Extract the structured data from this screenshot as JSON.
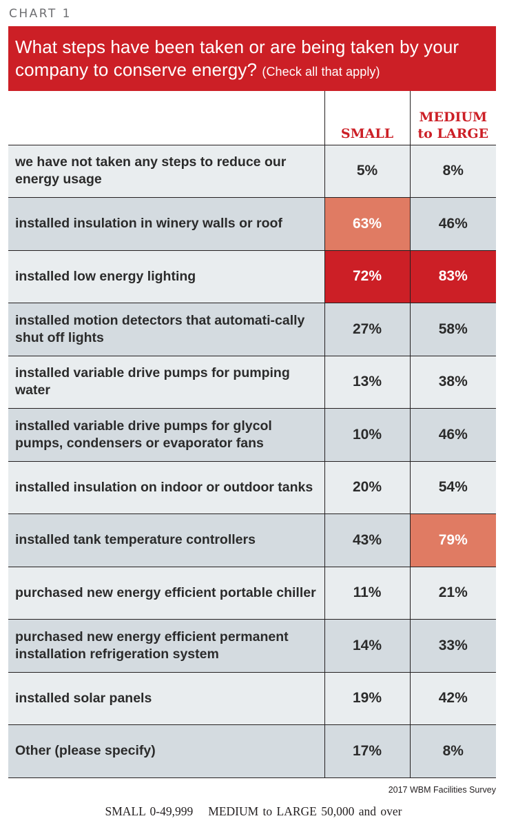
{
  "chart_label": "CHART 1",
  "title": "What steps have been taken or are being taken by your company to conserve energy?",
  "title_note": "(Check all that apply)",
  "columns": {
    "small": "SMALL",
    "medium_line1": "MEDIUM",
    "medium_line2": "to LARGE"
  },
  "chart_data": {
    "type": "table",
    "title": "What steps have been taken or are being taken by your company to conserve energy? (Check all that apply)",
    "columns": [
      "SMALL",
      "MEDIUM to LARGE"
    ],
    "rows": [
      {
        "label": "we have not taken any steps to reduce our energy usage",
        "small": "5%",
        "medium": "8%",
        "small_value": 5,
        "medium_value": 8
      },
      {
        "label": "installed insulation in winery walls or roof",
        "small": "63%",
        "medium": "46%",
        "small_value": 63,
        "medium_value": 46
      },
      {
        "label": "installed low energy lighting",
        "small": "72%",
        "medium": "83%",
        "small_value": 72,
        "medium_value": 83
      },
      {
        "label": "installed motion detectors that automati-cally shut off lights",
        "small": "27%",
        "medium": "58%",
        "small_value": 27,
        "medium_value": 58
      },
      {
        "label": "installed variable drive pumps for pumping water",
        "small": "13%",
        "medium": "38%",
        "small_value": 13,
        "medium_value": 38
      },
      {
        "label": "installed variable drive pumps for glycol pumps, condensers or evaporator fans",
        "small": "10%",
        "medium": "46%",
        "small_value": 10,
        "medium_value": 46
      },
      {
        "label": "installed insulation on indoor or outdoor tanks",
        "small": "20%",
        "medium": "54%",
        "small_value": 20,
        "medium_value": 54
      },
      {
        "label": "installed tank temperature controllers",
        "small": "43%",
        "medium": "79%",
        "small_value": 43,
        "medium_value": 79
      },
      {
        "label": "purchased new energy efficient portable chiller",
        "small": "11%",
        "medium": "21%",
        "small_value": 11,
        "medium_value": 21
      },
      {
        "label": "purchased new energy efficient permanent installation refrigeration system",
        "small": "14%",
        "medium": "33%",
        "small_value": 14,
        "medium_value": 33
      },
      {
        "label": "installed solar panels",
        "small": "19%",
        "medium": "42%",
        "small_value": 19,
        "medium_value": 42
      },
      {
        "label": "Other (please specify)",
        "small": "17%",
        "medium": "8%",
        "small_value": 17,
        "medium_value": 8
      }
    ]
  },
  "colors": {
    "accent_red": "#cc1f26",
    "highlight_salmon": "#e07b63",
    "row_light": "#e9edef",
    "row_dark": "#d4dbe0"
  },
  "source": "2017 WBM Facilities Survey",
  "footnote": {
    "small": "SMALL 0-49,999",
    "medium": "MEDIUM to LARGE 50,000 and over"
  }
}
